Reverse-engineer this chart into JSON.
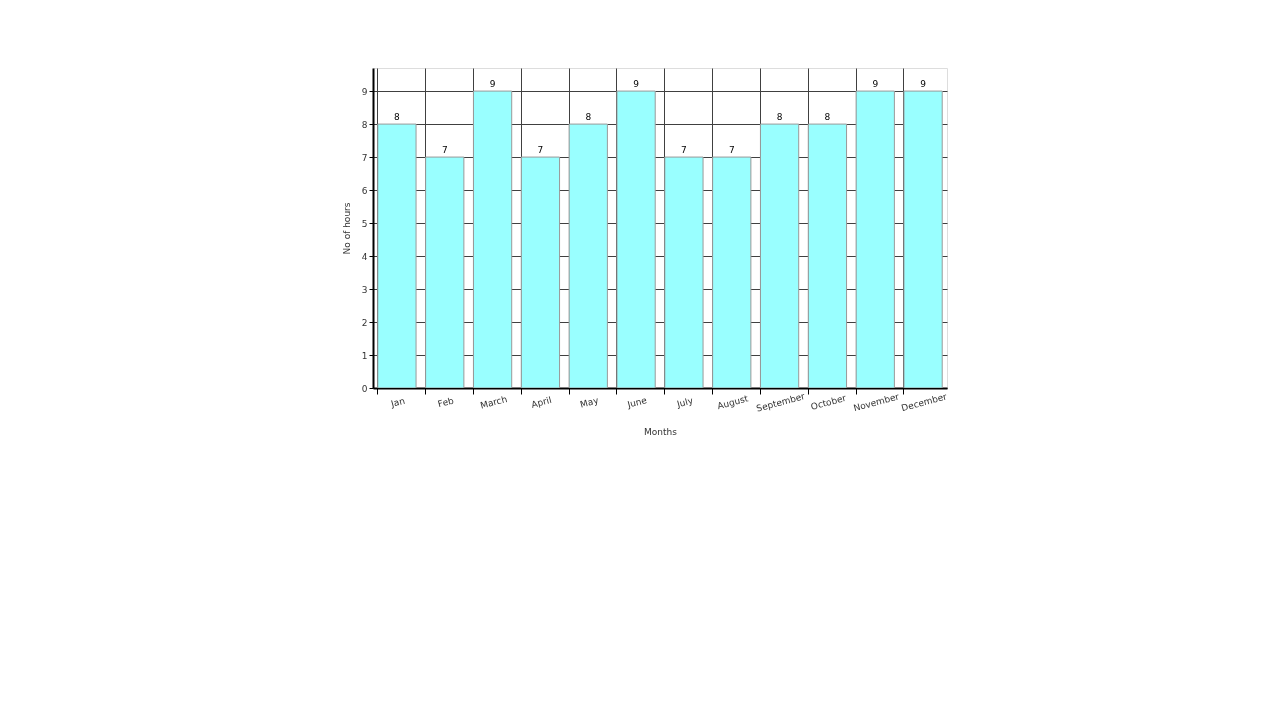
{
  "chart_data": {
    "type": "bar",
    "xlabel": "Months",
    "ylabel": "No of hours",
    "categories": [
      "Jan",
      "Feb",
      "March",
      "April",
      "May",
      "June",
      "July",
      "August",
      "September",
      "October",
      "November",
      "December"
    ],
    "values": [
      8,
      7,
      9,
      7,
      8,
      9,
      7,
      7,
      8,
      8,
      9,
      9
    ],
    "color": "#99ffff",
    "ylim": [
      0,
      9.7
    ],
    "yticks": [
      0,
      1,
      2,
      3,
      4,
      5,
      6,
      7,
      8,
      9
    ],
    "grid": true,
    "data_labels": true
  }
}
